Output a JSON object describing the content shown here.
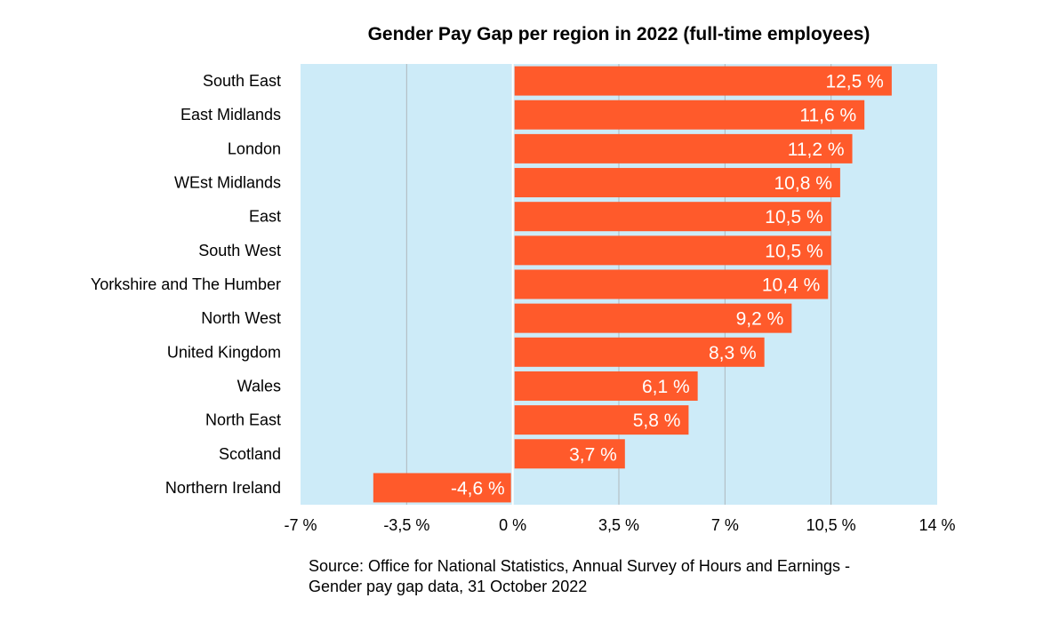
{
  "chart_data": {
    "type": "bar",
    "orientation": "horizontal",
    "title": "Gender Pay Gap per region in 2022 (full-time employees)",
    "categories": [
      "South East",
      "East Midlands",
      "London",
      "WEst Midlands",
      "East",
      "South West",
      "Yorkshire and The Humber",
      "North West",
      "United Kingdom",
      "Wales",
      "North East",
      "Scotland",
      "Northern Ireland"
    ],
    "values": [
      12.5,
      11.6,
      11.2,
      10.8,
      10.5,
      10.5,
      10.4,
      9.2,
      8.3,
      6.1,
      5.8,
      3.7,
      -4.6
    ],
    "data_labels": [
      "12,5 %",
      "11,6 %",
      "11,2 %",
      "10,8 %",
      "10,5 %",
      "10,5 %",
      "10,4 %",
      "9,2 %",
      "8,3 %",
      "6,1 %",
      "5,8 %",
      "3,7 %",
      "-4,6 %"
    ],
    "xlim": [
      -7,
      14
    ],
    "x_ticks": [
      -7,
      -3.5,
      0,
      3.5,
      7,
      10.5,
      14
    ],
    "x_tick_labels": [
      "-7 %",
      "-3,5 %",
      "0 %",
      "3,5 %",
      "7 %",
      "10,5 %",
      "14 %"
    ],
    "xlabel": "",
    "ylabel": "",
    "grid": true,
    "legend": "none",
    "source_lines": [
      "Source: Office for National Statistics, Annual Survey of Hours and Earnings -",
      "Gender pay gap data, 31 October 2022"
    ],
    "colors": {
      "bar": "#ff5a2b",
      "plot_background": "#cdebf8",
      "grid": "#b0b8bc",
      "zero_line": "#ffffff",
      "data_label_text": "#ffffff"
    }
  }
}
